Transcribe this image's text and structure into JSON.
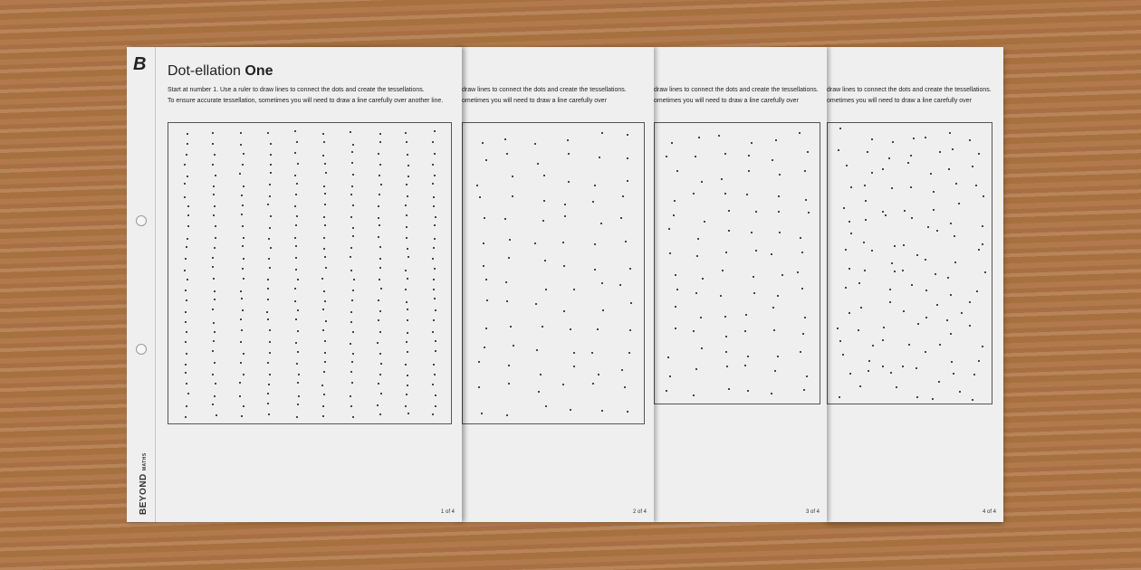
{
  "brand": {
    "logo": "B",
    "name": "BEYOND",
    "sub": "MATHS"
  },
  "worksheet": {
    "title_prefix": "Dot-ellation",
    "title_bold": "One",
    "instruction_1": "Start at number 1. Use a ruler to draw lines to connect the dots and create the tessellations.",
    "instruction_2": "To ensure accurate tessellation, sometimes you will need to draw a line carefully over another line.",
    "partial_instruction_1": "draw lines to connect the dots and create the tessellations.",
    "partial_instruction_2": "ometimes you will need to draw a line carefully over"
  },
  "pages": [
    {
      "label": "1 of 4"
    },
    {
      "label": "2 of 4"
    },
    {
      "label": "3 of 4"
    },
    {
      "label": "4 of 4"
    }
  ]
}
